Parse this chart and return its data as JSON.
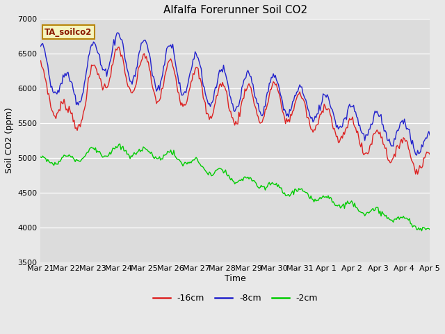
{
  "title": "Alfalfa Forerunner Soil CO2",
  "xlabel": "Time",
  "ylabel": "Soil CO2 (ppm)",
  "ylim": [
    3500,
    7000
  ],
  "yticks": [
    3500,
    4000,
    4500,
    5000,
    5500,
    6000,
    6500,
    7000
  ],
  "fig_bg": "#e8e8e8",
  "plot_bg": "#dcdcdc",
  "legend_label": "TA_soilco2",
  "series_labels": [
    "-16cm",
    "-8cm",
    "-2cm"
  ],
  "series_colors": [
    "#dd2222",
    "#2222cc",
    "#00cc00"
  ],
  "n_points": 384,
  "xtick_labels": [
    "Mar 21",
    "Mar 22",
    "Mar 23",
    "Mar 24",
    "Mar 25",
    "Mar 26",
    "Mar 27",
    "Mar 28",
    "Mar 29",
    "Mar 30",
    "Mar 31",
    "Apr 1",
    "Apr 2",
    "Apr 3",
    "Apr 4",
    "Apr 5"
  ],
  "line_width": 1.0
}
